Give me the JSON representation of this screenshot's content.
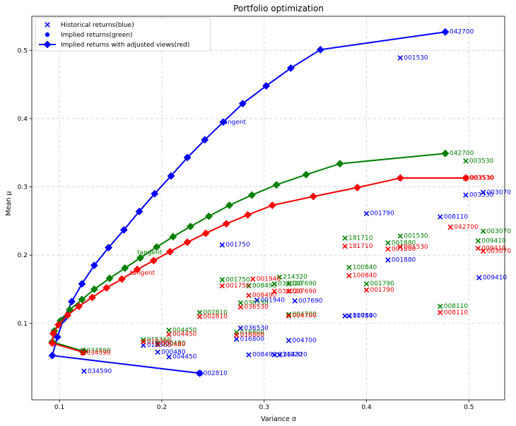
{
  "chart_data": {
    "type": "line",
    "title": "Portfolio optimization",
    "xlabel": "Variance σ",
    "ylabel": "Mean μ",
    "xlim": [
      0.073,
      0.535
    ],
    "ylim": [
      -0.012,
      0.55
    ],
    "x_ticks": [
      0.1,
      0.2,
      0.3,
      0.4,
      0.5
    ],
    "y_ticks": [
      0.1,
      0.2,
      0.3,
      0.4,
      0.5
    ],
    "grid": true,
    "legend_position": "top-left",
    "legend": [
      {
        "label": "Historical returns(blue)",
        "marker": "x",
        "color": "#0000ff"
      },
      {
        "label": "Implied returns(green)",
        "marker": "dot",
        "color": "#0000ff"
      },
      {
        "label": "Implied returns with adjusted views(red)",
        "marker": "diamond-line",
        "color": "#0000ff"
      }
    ],
    "frontiers": [
      {
        "color": "#0000ff",
        "points": [
          [
            0.237,
            0.027
          ],
          [
            0.093,
            0.053
          ],
          [
            0.098,
            0.08
          ],
          [
            0.104,
            0.106
          ],
          [
            0.112,
            0.132
          ],
          [
            0.122,
            0.158
          ],
          [
            0.134,
            0.185
          ],
          [
            0.148,
            0.211
          ],
          [
            0.163,
            0.237
          ],
          [
            0.178,
            0.264
          ],
          [
            0.193,
            0.29
          ],
          [
            0.209,
            0.316
          ],
          [
            0.225,
            0.343
          ],
          [
            0.242,
            0.369
          ],
          [
            0.26,
            0.395
          ],
          [
            0.279,
            0.422
          ],
          [
            0.302,
            0.448
          ],
          [
            0.326,
            0.474
          ],
          [
            0.355,
            0.501
          ],
          [
            0.477,
            0.527
          ]
        ]
      },
      {
        "color": "#008000",
        "points": [
          [
            0.124,
            0.059
          ],
          [
            0.093,
            0.073
          ],
          [
            0.095,
            0.089
          ],
          [
            0.101,
            0.104
          ],
          [
            0.11,
            0.12
          ],
          [
            0.122,
            0.135
          ],
          [
            0.134,
            0.15
          ],
          [
            0.149,
            0.166
          ],
          [
            0.164,
            0.181
          ],
          [
            0.179,
            0.196
          ],
          [
            0.195,
            0.212
          ],
          [
            0.211,
            0.227
          ],
          [
            0.228,
            0.242
          ],
          [
            0.246,
            0.257
          ],
          [
            0.266,
            0.273
          ],
          [
            0.288,
            0.288
          ],
          [
            0.312,
            0.303
          ],
          [
            0.341,
            0.318
          ],
          [
            0.374,
            0.334
          ],
          [
            0.477,
            0.349
          ]
        ]
      },
      {
        "color": "#ff0000",
        "points": [
          [
            0.123,
            0.058
          ],
          [
            0.093,
            0.071
          ],
          [
            0.094,
            0.085
          ],
          [
            0.099,
            0.098
          ],
          [
            0.108,
            0.112
          ],
          [
            0.119,
            0.125
          ],
          [
            0.132,
            0.138
          ],
          [
            0.146,
            0.152
          ],
          [
            0.161,
            0.165
          ],
          [
            0.176,
            0.179
          ],
          [
            0.192,
            0.192
          ],
          [
            0.208,
            0.205
          ],
          [
            0.225,
            0.219
          ],
          [
            0.243,
            0.232
          ],
          [
            0.263,
            0.246
          ],
          [
            0.284,
            0.259
          ],
          [
            0.308,
            0.273
          ],
          [
            0.348,
            0.286
          ],
          [
            0.391,
            0.299
          ],
          [
            0.433,
            0.313
          ],
          [
            0.497,
            0.313
          ]
        ]
      }
    ],
    "tangent_points": [
      {
        "label": "tangent",
        "x": 0.26,
        "y": 0.395,
        "color": "#0000ff"
      },
      {
        "label": "tangent",
        "x": 0.178,
        "y": 0.204,
        "color": "#008000"
      },
      {
        "label": "tangent",
        "x": 0.171,
        "y": 0.174,
        "color": "#ff0000"
      }
    ],
    "historical_points": [
      {
        "label": "002810",
        "x": 0.237,
        "y": 0.027
      },
      {
        "label": "034590",
        "x": 0.124,
        "y": 0.03
      },
      {
        "label": "004450",
        "x": 0.207,
        "y": 0.051
      },
      {
        "label": "000480",
        "x": 0.196,
        "y": 0.058
      },
      {
        "label": "015360",
        "x": 0.182,
        "y": 0.068
      },
      {
        "label": "008490",
        "x": 0.285,
        "y": 0.054
      },
      {
        "label": "034020",
        "x": 0.31,
        "y": 0.054
      },
      {
        "label": "214320",
        "x": 0.315,
        "y": 0.054
      },
      {
        "label": "016800",
        "x": 0.273,
        "y": 0.077
      },
      {
        "label": "004700",
        "x": 0.324,
        "y": 0.075
      },
      {
        "label": "036530",
        "x": 0.277,
        "y": 0.093
      },
      {
        "label": "181710",
        "x": 0.379,
        "y": 0.111
      },
      {
        "label": "100840",
        "x": 0.383,
        "y": 0.111
      },
      {
        "label": "001940",
        "x": 0.293,
        "y": 0.134
      },
      {
        "label": "007690",
        "x": 0.33,
        "y": 0.133
      },
      {
        "label": "001750",
        "x": 0.259,
        "y": 0.215
      },
      {
        "label": "001790",
        "x": 0.4,
        "y": 0.261
      },
      {
        "label": "001880",
        "x": 0.421,
        "y": 0.193
      },
      {
        "label": "008110",
        "x": 0.472,
        "y": 0.256
      },
      {
        "label": "009410",
        "x": 0.51,
        "y": 0.167
      },
      {
        "label": "003530",
        "x": 0.497,
        "y": 0.288
      },
      {
        "label": "003070",
        "x": 0.514,
        "y": 0.292
      },
      {
        "label": "001530",
        "x": 0.433,
        "y": 0.489
      }
    ],
    "implied_points": [
      {
        "label": "034590",
        "x": 0.123,
        "y": 0.06
      },
      {
        "label": "015360",
        "x": 0.182,
        "y": 0.076
      },
      {
        "label": "000480",
        "x": 0.196,
        "y": 0.071
      },
      {
        "label": "004450",
        "x": 0.207,
        "y": 0.09
      },
      {
        "label": "002810",
        "x": 0.237,
        "y": 0.116
      },
      {
        "label": "016800",
        "x": 0.273,
        "y": 0.087
      },
      {
        "label": "036530",
        "x": 0.277,
        "y": 0.13
      },
      {
        "label": "008490",
        "x": 0.285,
        "y": 0.155
      },
      {
        "label": "001750",
        "x": 0.259,
        "y": 0.164
      },
      {
        "label": "214320",
        "x": 0.315,
        "y": 0.168
      },
      {
        "label": "034020",
        "x": 0.31,
        "y": 0.158
      },
      {
        "label": "007690",
        "x": 0.324,
        "y": 0.158
      },
      {
        "label": "004700",
        "x": 0.324,
        "y": 0.113
      },
      {
        "label": "181710",
        "x": 0.379,
        "y": 0.225
      },
      {
        "label": "100840",
        "x": 0.383,
        "y": 0.182
      },
      {
        "label": "001880",
        "x": 0.421,
        "y": 0.218
      },
      {
        "label": "001530",
        "x": 0.433,
        "y": 0.228
      },
      {
        "label": "001790",
        "x": 0.4,
        "y": 0.158
      },
      {
        "label": "008110",
        "x": 0.472,
        "y": 0.125
      },
      {
        "label": "003530",
        "x": 0.497,
        "y": 0.338
      },
      {
        "label": "009410",
        "x": 0.509,
        "y": 0.221
      },
      {
        "label": "003070",
        "x": 0.514,
        "y": 0.235
      }
    ],
    "adjusted_points": [
      {
        "label": "034590",
        "x": 0.123,
        "y": 0.057
      },
      {
        "label": "015360",
        "x": 0.182,
        "y": 0.073
      },
      {
        "label": "000480",
        "x": 0.196,
        "y": 0.069
      },
      {
        "label": "004450",
        "x": 0.207,
        "y": 0.084
      },
      {
        "label": "002810",
        "x": 0.237,
        "y": 0.11
      },
      {
        "label": "016800",
        "x": 0.273,
        "y": 0.083
      },
      {
        "label": "036530",
        "x": 0.277,
        "y": 0.124
      },
      {
        "label": "008490",
        "x": 0.285,
        "y": 0.141
      },
      {
        "label": "001750",
        "x": 0.259,
        "y": 0.155
      },
      {
        "label": "001940",
        "x": 0.289,
        "y": 0.165
      },
      {
        "label": "034020",
        "x": 0.31,
        "y": 0.147
      },
      {
        "label": "007690",
        "x": 0.324,
        "y": 0.147
      },
      {
        "label": "004700",
        "x": 0.324,
        "y": 0.111
      },
      {
        "label": "181710",
        "x": 0.379,
        "y": 0.213
      },
      {
        "label": "100840",
        "x": 0.383,
        "y": 0.17
      },
      {
        "label": "001880",
        "x": 0.421,
        "y": 0.209
      },
      {
        "label": "001530",
        "x": 0.433,
        "y": 0.212
      },
      {
        "label": "001790",
        "x": 0.4,
        "y": 0.149
      },
      {
        "label": "008110",
        "x": 0.472,
        "y": 0.116
      },
      {
        "label": "042700",
        "x": 0.482,
        "y": 0.241
      },
      {
        "label": "003530",
        "x": 0.497,
        "y": 0.313
      },
      {
        "label": "009410",
        "x": 0.509,
        "y": 0.21
      },
      {
        "label": "003070",
        "x": 0.514,
        "y": 0.206
      }
    ],
    "frontier_end_labels": [
      {
        "label": "042700",
        "x": 0.477,
        "y": 0.527,
        "color": "#0000ff"
      },
      {
        "label": "042700",
        "x": 0.477,
        "y": 0.349,
        "color": "#008000"
      },
      {
        "label": "003530",
        "x": 0.497,
        "y": 0.313,
        "color": "#ff0000"
      }
    ]
  }
}
